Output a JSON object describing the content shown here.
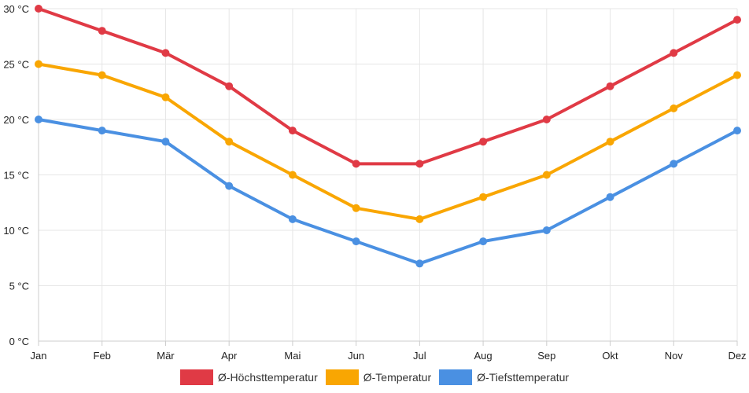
{
  "chart_data": {
    "type": "line",
    "title": "",
    "xlabel": "",
    "ylabel": "",
    "categories": [
      "Jan",
      "Feb",
      "Mär",
      "Apr",
      "Mai",
      "Jun",
      "Jul",
      "Aug",
      "Sep",
      "Okt",
      "Nov",
      "Dez"
    ],
    "ylim": [
      0,
      30
    ],
    "yticks": [
      0,
      5,
      10,
      15,
      20,
      25,
      30
    ],
    "y_unit": " °C",
    "grid": true,
    "legend_position": "bottom",
    "series": [
      {
        "name": "Ø-Höchsttemperatur",
        "color": "#e03a45",
        "values": [
          30,
          28,
          26,
          23,
          19,
          16,
          16,
          18,
          20,
          23,
          26,
          29
        ]
      },
      {
        "name": "Ø-Temperatur",
        "color": "#f9a602",
        "values": [
          25,
          24,
          22,
          18,
          15,
          12,
          11,
          13,
          15,
          18,
          21,
          24
        ]
      },
      {
        "name": "Ø-Tiefsttemperatur",
        "color": "#4a90e2",
        "values": [
          20,
          19,
          18,
          14,
          11,
          9,
          7,
          9,
          10,
          13,
          16,
          19
        ]
      }
    ]
  }
}
